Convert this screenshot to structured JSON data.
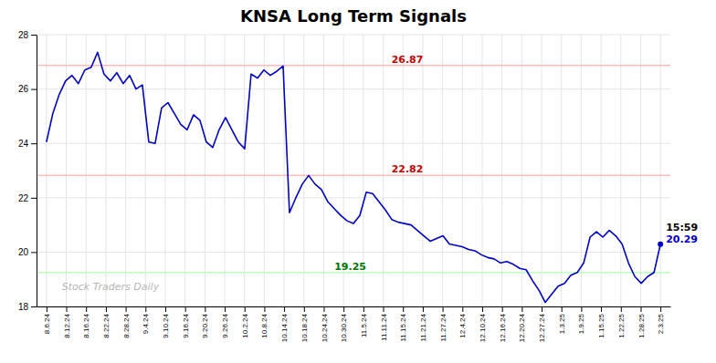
{
  "chart_data": {
    "type": "line",
    "title": "KNSA Long Term Signals",
    "color": "#0000cc",
    "grid": true,
    "xlim": [
      -0.5,
      31.5
    ],
    "xticks": [
      {
        "value": 0,
        "label": "8.6.24"
      },
      {
        "value": 1,
        "label": "8.12.24"
      },
      {
        "value": 2,
        "label": "8.16.24"
      },
      {
        "value": 3,
        "label": "8.22.24"
      },
      {
        "value": 4,
        "label": "8.28.24"
      },
      {
        "value": 5,
        "label": "9.4.24"
      },
      {
        "value": 6,
        "label": "9.10.24"
      },
      {
        "value": 7,
        "label": "9.16.24"
      },
      {
        "value": 8,
        "label": "9.20.24"
      },
      {
        "value": 9,
        "label": "9.26.24"
      },
      {
        "value": 10,
        "label": "10.2.24"
      },
      {
        "value": 11,
        "label": "10.8.24"
      },
      {
        "value": 12,
        "label": "10.14.24"
      },
      {
        "value": 13,
        "label": "10.18.24"
      },
      {
        "value": 14,
        "label": "10.24.24"
      },
      {
        "value": 15,
        "label": "10.30.24"
      },
      {
        "value": 16,
        "label": "11.5.24"
      },
      {
        "value": 17,
        "label": "11.11.24"
      },
      {
        "value": 18,
        "label": "11.15.24"
      },
      {
        "value": 19,
        "label": "11.21.24"
      },
      {
        "value": 20,
        "label": "11.27.24"
      },
      {
        "value": 21,
        "label": "12.4.24"
      },
      {
        "value": 22,
        "label": "12.10.24"
      },
      {
        "value": 23,
        "label": "12.16.24"
      },
      {
        "value": 24,
        "label": "12.20.24"
      },
      {
        "value": 25,
        "label": "12.27.24"
      },
      {
        "value": 26,
        "label": "1.3.25"
      },
      {
        "value": 27,
        "label": "1.9.25"
      },
      {
        "value": 28,
        "label": "1.15.25"
      },
      {
        "value": 29,
        "label": "1.22.25"
      },
      {
        "value": 30,
        "label": "1.28.25"
      },
      {
        "value": 31,
        "label": "2.3.25"
      }
    ],
    "ylim": [
      18,
      28
    ],
    "yticks": [
      18,
      20,
      22,
      24,
      26,
      28
    ],
    "x": [
      0,
      0.3229,
      0.6458,
      0.96875,
      1.2917,
      1.6146,
      1.9375,
      2.2604,
      2.5833,
      2.90625,
      3.2292,
      3.5521,
      3.875,
      4.1979,
      4.5208,
      4.84375,
      5.1667,
      5.4896,
      5.8125,
      6.1354,
      6.4583,
      6.78125,
      7.1042,
      7.4271,
      7.75,
      8.0729,
      8.3958,
      8.71875,
      9.0417,
      9.3646,
      9.6875,
      10.0104,
      10.3333,
      10.65625,
      10.9792,
      11.3021,
      11.625,
      11.9479,
      12.2708,
      12.59375,
      12.9167,
      13.2396,
      13.5625,
      13.8854,
      14.2083,
      14.53125,
      14.8542,
      15.1771,
      15.5,
      15.8229,
      16.1458,
      16.46875,
      16.7917,
      17.1146,
      17.4375,
      17.7604,
      18.0833,
      18.40625,
      18.7292,
      19.0521,
      19.375,
      19.6979,
      20.0208,
      20.34375,
      20.6667,
      20.9896,
      21.3125,
      21.6354,
      21.9583,
      22.28125,
      22.6042,
      22.9271,
      23.25,
      23.5729,
      23.8958,
      24.21875,
      24.5417,
      24.8646,
      25.1875,
      25.5104,
      25.8333,
      26.15625,
      26.4792,
      26.8021,
      27.125,
      27.4479,
      27.7708,
      28.09375,
      28.4167,
      28.7396,
      29.0625,
      29.3854,
      29.7083,
      30.03125,
      30.3542,
      30.6771,
      31
    ],
    "values": [
      24.05,
      25.1,
      25.8,
      26.3,
      26.5,
      26.2,
      26.7,
      26.8,
      27.35,
      26.55,
      26.3,
      26.6,
      26.2,
      26.5,
      26.0,
      26.15,
      24.05,
      24.0,
      25.3,
      25.5,
      25.1,
      24.7,
      24.5,
      25.05,
      24.85,
      24.05,
      23.85,
      24.5,
      24.95,
      24.5,
      24.05,
      23.8,
      26.55,
      26.4,
      26.7,
      26.5,
      26.65,
      26.85,
      21.45,
      22.0,
      22.5,
      22.82,
      22.5,
      22.3,
      21.85,
      21.6,
      21.35,
      21.15,
      21.05,
      21.35,
      22.2,
      22.15,
      21.85,
      21.55,
      21.2,
      21.1,
      21.05,
      21.0,
      20.8,
      20.6,
      20.4,
      20.5,
      20.6,
      20.3,
      20.25,
      20.2,
      20.1,
      20.05,
      19.9,
      19.8,
      19.75,
      19.6,
      19.65,
      19.55,
      19.4,
      19.35,
      18.95,
      18.6,
      18.15,
      18.45,
      18.75,
      18.85,
      19.15,
      19.25,
      19.6,
      20.55,
      20.75,
      20.55,
      20.8,
      20.6,
      20.3,
      19.6,
      19.1,
      18.85,
      19.1,
      19.25,
      20.29
    ],
    "hlines": [
      {
        "value": 26.87,
        "color": "#ffbbbb",
        "label": "26.87",
        "label_color": "#cc0000"
      },
      {
        "value": 22.82,
        "color": "#ffbbbb",
        "label": "22.82",
        "label_color": "#cc0000"
      },
      {
        "value": 19.25,
        "color": "#bbffbb",
        "label": "19.25",
        "label_color": "#007700"
      }
    ],
    "annotations": [
      {
        "text": "15:59",
        "color": "#000000"
      },
      {
        "text": "20.29",
        "color": "#0000cc"
      },
      {
        "text": "Stock Traders Daily"
      }
    ]
  }
}
